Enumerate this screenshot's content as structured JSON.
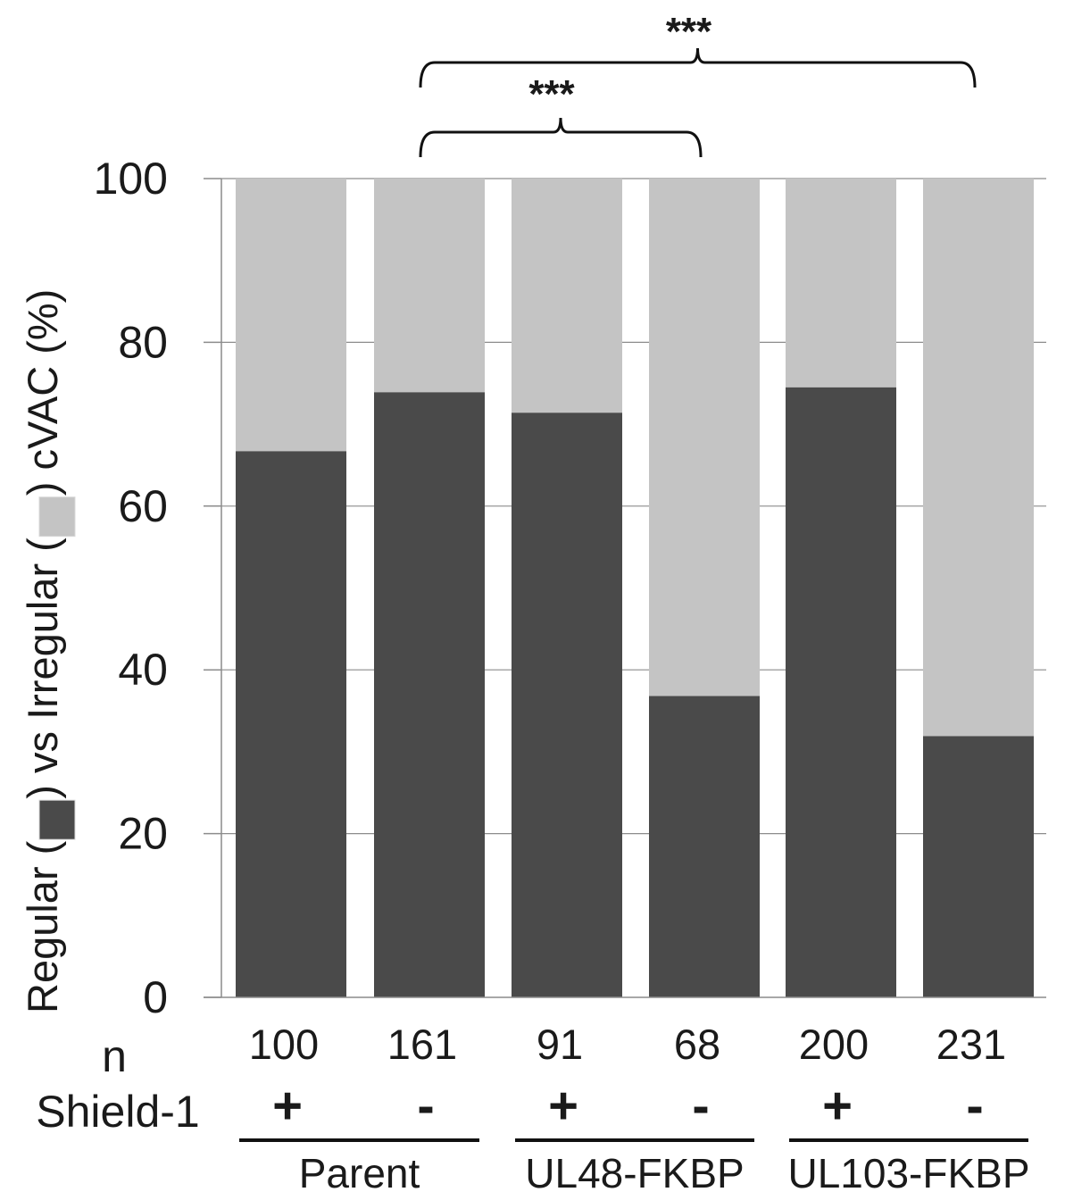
{
  "chart_data": {
    "type": "bar",
    "stacked": true,
    "title": "",
    "xlabel": "",
    "ylabel": {
      "part1": "Regular (",
      "part2": ") vs Irregular (",
      "part3": ") cVAC (%)"
    },
    "ylim": [
      0,
      100
    ],
    "yticks": [
      "0",
      "20",
      "40",
      "60",
      "80",
      "100"
    ],
    "grid": true,
    "colors": {
      "regular": "#4a4a4a",
      "irregular": "#c4c4c4"
    },
    "series": [
      {
        "key": "regular",
        "values": [
          66.7,
          73.9,
          71.4,
          36.8,
          74.5,
          31.9
        ]
      },
      {
        "key": "irregular",
        "values": [
          33.3,
          26.1,
          28.6,
          63.2,
          25.5,
          68.1
        ]
      }
    ],
    "n_label": "n",
    "n_values": [
      "100",
      "161",
      "91",
      "68",
      "200",
      "231"
    ],
    "shield_label": "Shield-1",
    "shield_values": [
      "+",
      "-",
      "+",
      "-",
      "+",
      "-"
    ],
    "groups": [
      {
        "name": "Parent",
        "bars": [
          0,
          1
        ]
      },
      {
        "name": "UL48-FKBP",
        "bars": [
          2,
          3
        ]
      },
      {
        "name": "UL103-FKBP",
        "bars": [
          4,
          5
        ]
      }
    ],
    "significance": [
      {
        "label": "***",
        "from": 1,
        "to": 5
      },
      {
        "label": "***",
        "from": 1,
        "to": 3
      }
    ]
  }
}
